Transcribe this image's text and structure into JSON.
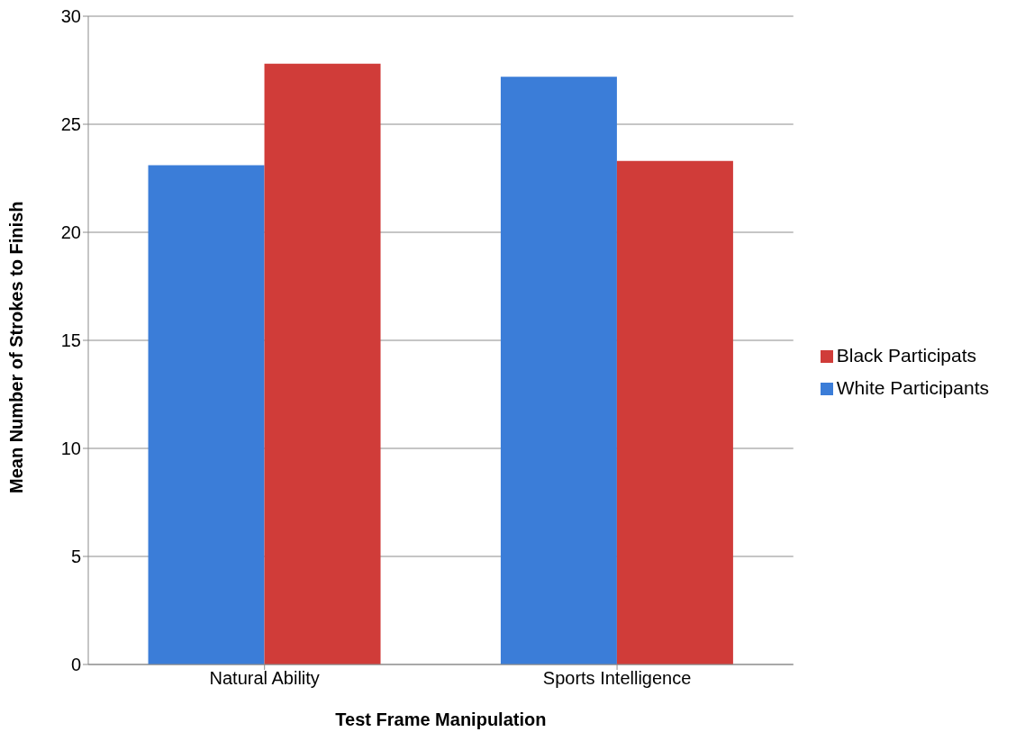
{
  "chart_data": {
    "type": "bar",
    "xlabel": "Test Frame Manipulation",
    "ylabel": "Mean Number of Strokes to Finish",
    "categories": [
      "Natural Ability",
      "Sports Intelligence"
    ],
    "series": [
      {
        "name": "White Participants",
        "color": "#3b7dd8",
        "values": [
          23.1,
          27.2
        ]
      },
      {
        "name": "Black Participats",
        "color": "#d03c39",
        "values": [
          27.8,
          23.3
        ]
      }
    ],
    "ylim": [
      0,
      30
    ],
    "yticks": [
      0,
      5,
      10,
      15,
      20,
      25,
      30
    ],
    "grid": "y",
    "legend": "right"
  }
}
